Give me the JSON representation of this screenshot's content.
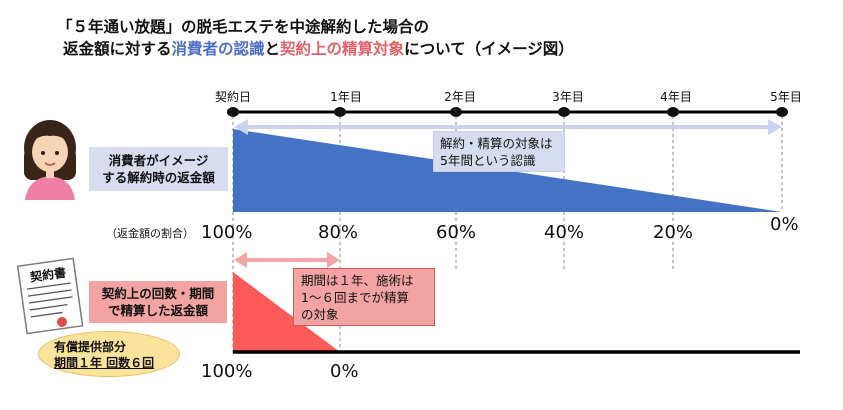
{
  "title": {
    "line1": "「５年通い放題」の脱毛エステを中途解約した場合の",
    "line2_a": "返金額に対する",
    "line2_b": "消費者の認識",
    "line2_c": "と",
    "line2_d": "契約上の精算対象",
    "line2_e": "について（イメージ図）"
  },
  "timeline": {
    "ticks": [
      "契約日",
      "1年目",
      "2年目",
      "3年目",
      "4年目",
      "5年目"
    ]
  },
  "consumer": {
    "label": "消費者がイメージする解約時の返金額",
    "label_line1": "消費者がイメージ",
    "label_line2": "する解約時の返金額",
    "note_line1": "解約・精算の対象は",
    "note_line2": "5年間という認識",
    "percentages": [
      "100%",
      "80%",
      "60%",
      "40%",
      "20%",
      "0%"
    ]
  },
  "ratio_label": "（返金額の割合）",
  "contract": {
    "label_line1": "契約上の回数・期間",
    "label_line2": "で精算した返金額",
    "note_line1": "期間は１年、施術は",
    "note_line2": "1〜６回までが精算",
    "note_line3": "の対象",
    "percentages": [
      "100%",
      "0%"
    ],
    "doc_title": "契約書"
  },
  "bubble": {
    "line1": "有償提供部分",
    "line2": "期間１年 回数６回"
  },
  "colors": {
    "consumer_fill": "#4472c4",
    "contract_fill": "#ff5a5a",
    "consumer_arrow": "#c9d3ef",
    "contract_arrow": "#f4a5a5",
    "title_blue": "#4f6fc7",
    "title_red": "#e0626b"
  }
}
